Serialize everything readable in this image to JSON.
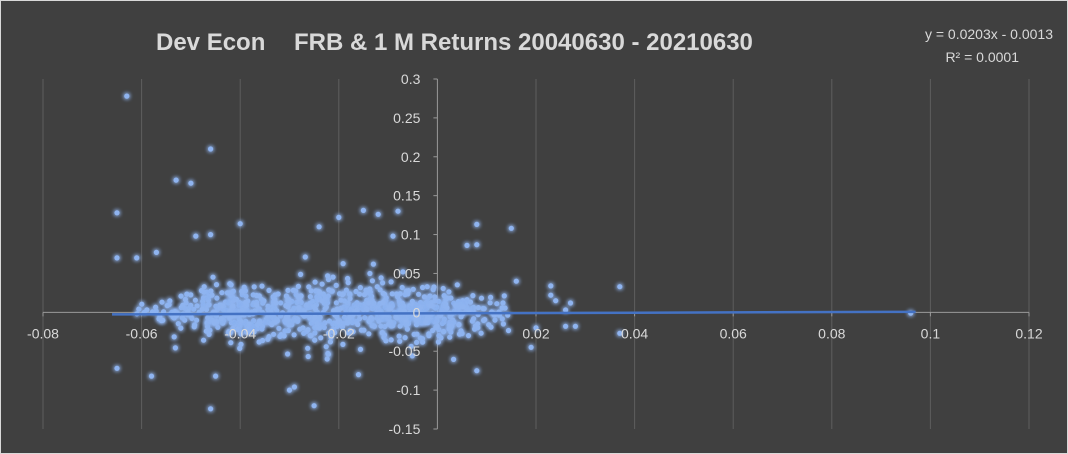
{
  "chart_data": {
    "type": "scatter",
    "title_left": "Dev Econ",
    "title_right": "FRB & 1 M Returns 20040630 - 20210630",
    "xlabel": "",
    "ylabel": "",
    "xlim": [
      -0.08,
      0.12
    ],
    "ylim": [
      -0.15,
      0.3
    ],
    "x_ticks": [
      -0.08,
      -0.06,
      -0.04,
      -0.02,
      0,
      0.02,
      0.04,
      0.06,
      0.08,
      0.1,
      0.12
    ],
    "x_tick_labels": [
      "-0.08",
      "-0.06",
      "-0.04",
      "-0.02",
      "0",
      "0.02",
      "0.04",
      "0.06",
      "0.08",
      "0.1",
      "0.12"
    ],
    "y_ticks": [
      -0.15,
      -0.1,
      -0.05,
      0,
      0.05,
      0.1,
      0.15,
      0.2,
      0.25,
      0.3
    ],
    "y_tick_labels": [
      "-0.15",
      "-0.1",
      "-0.05",
      "0",
      "0.05",
      "0.1",
      "0.15",
      "0.2",
      "0.25",
      "0.3"
    ],
    "gridlines": "vertical",
    "point_color": "#8fb4f0",
    "glow_color": "#4a7be8",
    "trendline": {
      "label_equation": "y = 0.0203x - 0.0013",
      "label_r2": "R² = 0.0001",
      "slope": 0.0203,
      "intercept": -0.0013,
      "x_range": [
        -0.066,
        0.097
      ],
      "color": "#4472c4"
    },
    "outliers": [
      {
        "x": -0.063,
        "y": 0.278
      },
      {
        "x": -0.046,
        "y": 0.21
      },
      {
        "x": -0.053,
        "y": 0.17
      },
      {
        "x": -0.05,
        "y": 0.166
      },
      {
        "x": -0.065,
        "y": 0.128
      },
      {
        "x": -0.04,
        "y": 0.114
      },
      {
        "x": -0.024,
        "y": 0.11
      },
      {
        "x": -0.02,
        "y": 0.122
      },
      {
        "x": -0.015,
        "y": 0.131
      },
      {
        "x": -0.012,
        "y": 0.126
      },
      {
        "x": -0.008,
        "y": 0.13
      },
      {
        "x": 0.008,
        "y": 0.087
      },
      {
        "x": 0.006,
        "y": 0.086
      },
      {
        "x": 0.008,
        "y": 0.113
      },
      {
        "x": 0.015,
        "y": 0.108
      },
      {
        "x": -0.049,
        "y": 0.098
      },
      {
        "x": -0.046,
        "y": 0.1
      },
      {
        "x": -0.057,
        "y": 0.077
      },
      {
        "x": -0.065,
        "y": 0.07
      },
      {
        "x": -0.061,
        "y": 0.07
      },
      {
        "x": -0.065,
        "y": -0.072
      },
      {
        "x": -0.058,
        "y": -0.082
      },
      {
        "x": -0.045,
        "y": -0.082
      },
      {
        "x": -0.046,
        "y": -0.124
      },
      {
        "x": -0.03,
        "y": -0.1
      },
      {
        "x": -0.029,
        "y": -0.096
      },
      {
        "x": -0.025,
        "y": -0.12
      },
      {
        "x": -0.016,
        "y": -0.08
      },
      {
        "x": 0.008,
        "y": -0.075
      },
      {
        "x": 0.019,
        "y": -0.045
      },
      {
        "x": 0.023,
        "y": 0.034
      },
      {
        "x": 0.023,
        "y": 0.022
      },
      {
        "x": 0.024,
        "y": 0.015
      },
      {
        "x": 0.026,
        "y": 0.003
      },
      {
        "x": 0.027,
        "y": 0.012
      },
      {
        "x": 0.026,
        "y": -0.018
      },
      {
        "x": 0.028,
        "y": -0.018
      },
      {
        "x": 0.037,
        "y": 0.033
      },
      {
        "x": 0.037,
        "y": -0.027
      },
      {
        "x": 0.096,
        "y": -0.001
      },
      {
        "x": 0.02,
        "y": -0.02
      },
      {
        "x": 0.016,
        "y": 0.04
      },
      {
        "x": -0.007,
        "y": 0.052
      },
      {
        "x": -0.009,
        "y": 0.098
      }
    ],
    "cluster": {
      "count": 820,
      "x_center": -0.022,
      "x_half_width": 0.04,
      "y_center": 0.0,
      "y_spread": 0.032,
      "seed": 7
    }
  }
}
